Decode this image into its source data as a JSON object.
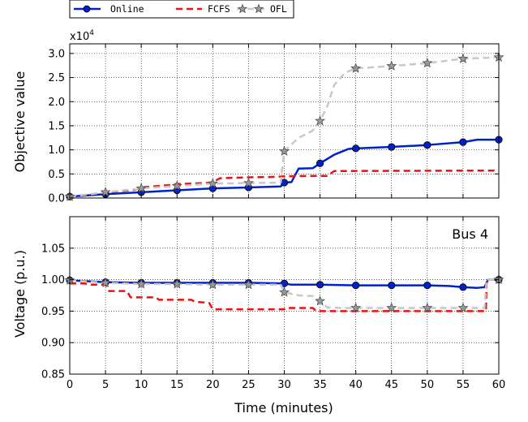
{
  "legend": {
    "entries": [
      {
        "label": "Online",
        "color": "#0022cc",
        "marker": "circle",
        "style": "solid"
      },
      {
        "label": "FCFS",
        "color": "#ee1111",
        "marker": "none",
        "style": "dashed"
      },
      {
        "label": "OFL",
        "color": "#c8c8c8",
        "marker": "star",
        "style": "dashed"
      }
    ]
  },
  "chart_data": [
    {
      "type": "line",
      "ylabel": "Objective value",
      "y_multiplier": "x10",
      "y_multiplier_exp": "4",
      "xlim": [
        0,
        60
      ],
      "ylim": [
        0,
        32000
      ],
      "x_ticks": [
        0,
        5,
        10,
        15,
        20,
        25,
        30,
        35,
        40,
        45,
        50,
        55,
        60
      ],
      "y_ticks": [
        0,
        5000,
        10000,
        15000,
        20000,
        25000,
        30000
      ],
      "y_tick_labels": [
        "0.0",
        "0.5",
        "1.0",
        "1.5",
        "2.0",
        "2.5",
        "3.0"
      ],
      "grid": true,
      "series": [
        {
          "name": "Online",
          "color": "#0022cc",
          "style": "solid",
          "marker": "circle",
          "x": [
            0,
            5,
            10,
            15,
            20,
            25,
            29.5,
            30,
            31,
            32,
            34,
            35,
            37,
            39,
            40,
            45,
            50,
            55,
            57,
            60
          ],
          "y": [
            300,
            800,
            1200,
            1600,
            2000,
            2200,
            2400,
            3200,
            3300,
            6100,
            6200,
            7200,
            9000,
            10200,
            10300,
            10600,
            11000,
            11600,
            12100,
            12100
          ],
          "markers_x": [
            0,
            5,
            10,
            15,
            20,
            25,
            30,
            35,
            40,
            45,
            50,
            55,
            60
          ],
          "markers_y": [
            300,
            800,
            1200,
            1600,
            2000,
            2200,
            3200,
            7200,
            10300,
            10600,
            11000,
            11600,
            12100
          ]
        },
        {
          "name": "FCFS",
          "color": "#ee1111",
          "style": "dashed",
          "marker": "none",
          "x": [
            0,
            5,
            9,
            10,
            14,
            15,
            19,
            20,
            21,
            25,
            29,
            30,
            35,
            36,
            37,
            60
          ],
          "y": [
            300,
            1100,
            1700,
            2200,
            2700,
            2900,
            3100,
            3300,
            4100,
            4300,
            4400,
            4500,
            4600,
            4600,
            5600,
            5700
          ]
        },
        {
          "name": "OFL",
          "color": "#c8c8c8",
          "style": "dashed",
          "marker": "star",
          "x": [
            0,
            5,
            10,
            15,
            20,
            25,
            29.5,
            30,
            32,
            34,
            35,
            36,
            37,
            38.5,
            40,
            45,
            50,
            55,
            60
          ],
          "y": [
            300,
            1200,
            2000,
            2500,
            3000,
            3100,
            3200,
            9700,
            12500,
            14000,
            16000,
            19000,
            23500,
            26000,
            26900,
            27400,
            28000,
            28900,
            29200
          ],
          "markers_x": [
            0,
            5,
            10,
            15,
            20,
            25,
            30,
            35,
            40,
            45,
            50,
            55,
            60
          ],
          "markers_y": [
            300,
            1200,
            2000,
            2500,
            3000,
            3100,
            9700,
            16000,
            26900,
            27400,
            28000,
            28900,
            29200
          ]
        }
      ]
    },
    {
      "type": "line",
      "xlabel": "Time (minutes)",
      "ylabel": "Voltage (p.u.)",
      "annotation": "Bus 4",
      "xlim": [
        0,
        60
      ],
      "ylim": [
        0.85,
        1.1
      ],
      "x_ticks": [
        0,
        5,
        10,
        15,
        20,
        25,
        30,
        35,
        40,
        45,
        50,
        55,
        60
      ],
      "x_tick_labels": [
        "0",
        "5",
        "10",
        "15",
        "20",
        "25",
        "30",
        "35",
        "40",
        "45",
        "50",
        "55",
        "60"
      ],
      "y_ticks": [
        0.85,
        0.9,
        0.95,
        1.0,
        1.05
      ],
      "y_tick_labels": [
        "0.85",
        "0.90",
        "0.95",
        "1.00",
        "1.05"
      ],
      "grid": true,
      "series": [
        {
          "name": "Online",
          "color": "#0022cc",
          "style": "solid",
          "marker": "circle",
          "x": [
            0,
            5,
            10,
            15,
            20,
            25,
            30,
            31,
            35,
            40,
            45,
            50,
            53,
            55,
            57,
            58,
            58.5,
            60
          ],
          "y": [
            0.999,
            0.996,
            0.995,
            0.995,
            0.995,
            0.995,
            0.994,
            0.992,
            0.992,
            0.991,
            0.991,
            0.991,
            0.99,
            0.988,
            0.987,
            0.988,
            1.0,
            1.0
          ],
          "markers_x": [
            0,
            5,
            10,
            15,
            20,
            25,
            30,
            35,
            40,
            45,
            50,
            55,
            60
          ],
          "markers_y": [
            0.999,
            0.996,
            0.995,
            0.995,
            0.995,
            0.995,
            0.994,
            0.992,
            0.991,
            0.991,
            0.991,
            0.988,
            1.0
          ]
        },
        {
          "name": "FCFS",
          "color": "#ee1111",
          "style": "dashed",
          "marker": "none",
          "x": [
            0,
            2,
            3,
            5,
            5.5,
            8,
            8.5,
            12,
            12.5,
            17,
            17.5,
            19.5,
            20,
            30,
            30.2,
            34,
            34.5,
            58.2,
            58.3,
            60
          ],
          "y": [
            0.994,
            0.994,
            0.992,
            0.992,
            0.982,
            0.982,
            0.972,
            0.972,
            0.968,
            0.968,
            0.965,
            0.963,
            0.953,
            0.953,
            0.955,
            0.955,
            0.95,
            0.95,
            1.0,
            1.0
          ],
          "markers_x": [],
          "markers_y": []
        },
        {
          "name": "OFL",
          "color": "#c8c8c8",
          "style": "dashed",
          "marker": "star",
          "x": [
            0,
            5,
            10,
            15,
            20,
            25,
            29.5,
            30,
            32,
            34,
            35,
            36,
            38,
            40,
            45,
            50,
            55,
            58,
            58.3,
            60
          ],
          "y": [
            0.999,
            0.995,
            0.993,
            0.993,
            0.992,
            0.992,
            0.992,
            0.98,
            0.975,
            0.974,
            0.966,
            0.956,
            0.955,
            0.955,
            0.955,
            0.955,
            0.955,
            0.955,
            1.0,
            1.0
          ],
          "markers_x": [
            0,
            5,
            10,
            15,
            20,
            25,
            30,
            35,
            40,
            45,
            50,
            55,
            60
          ],
          "markers_y": [
            0.999,
            0.995,
            0.993,
            0.993,
            0.992,
            0.992,
            0.98,
            0.966,
            0.955,
            0.955,
            0.955,
            0.955,
            1.0
          ]
        }
      ]
    }
  ]
}
